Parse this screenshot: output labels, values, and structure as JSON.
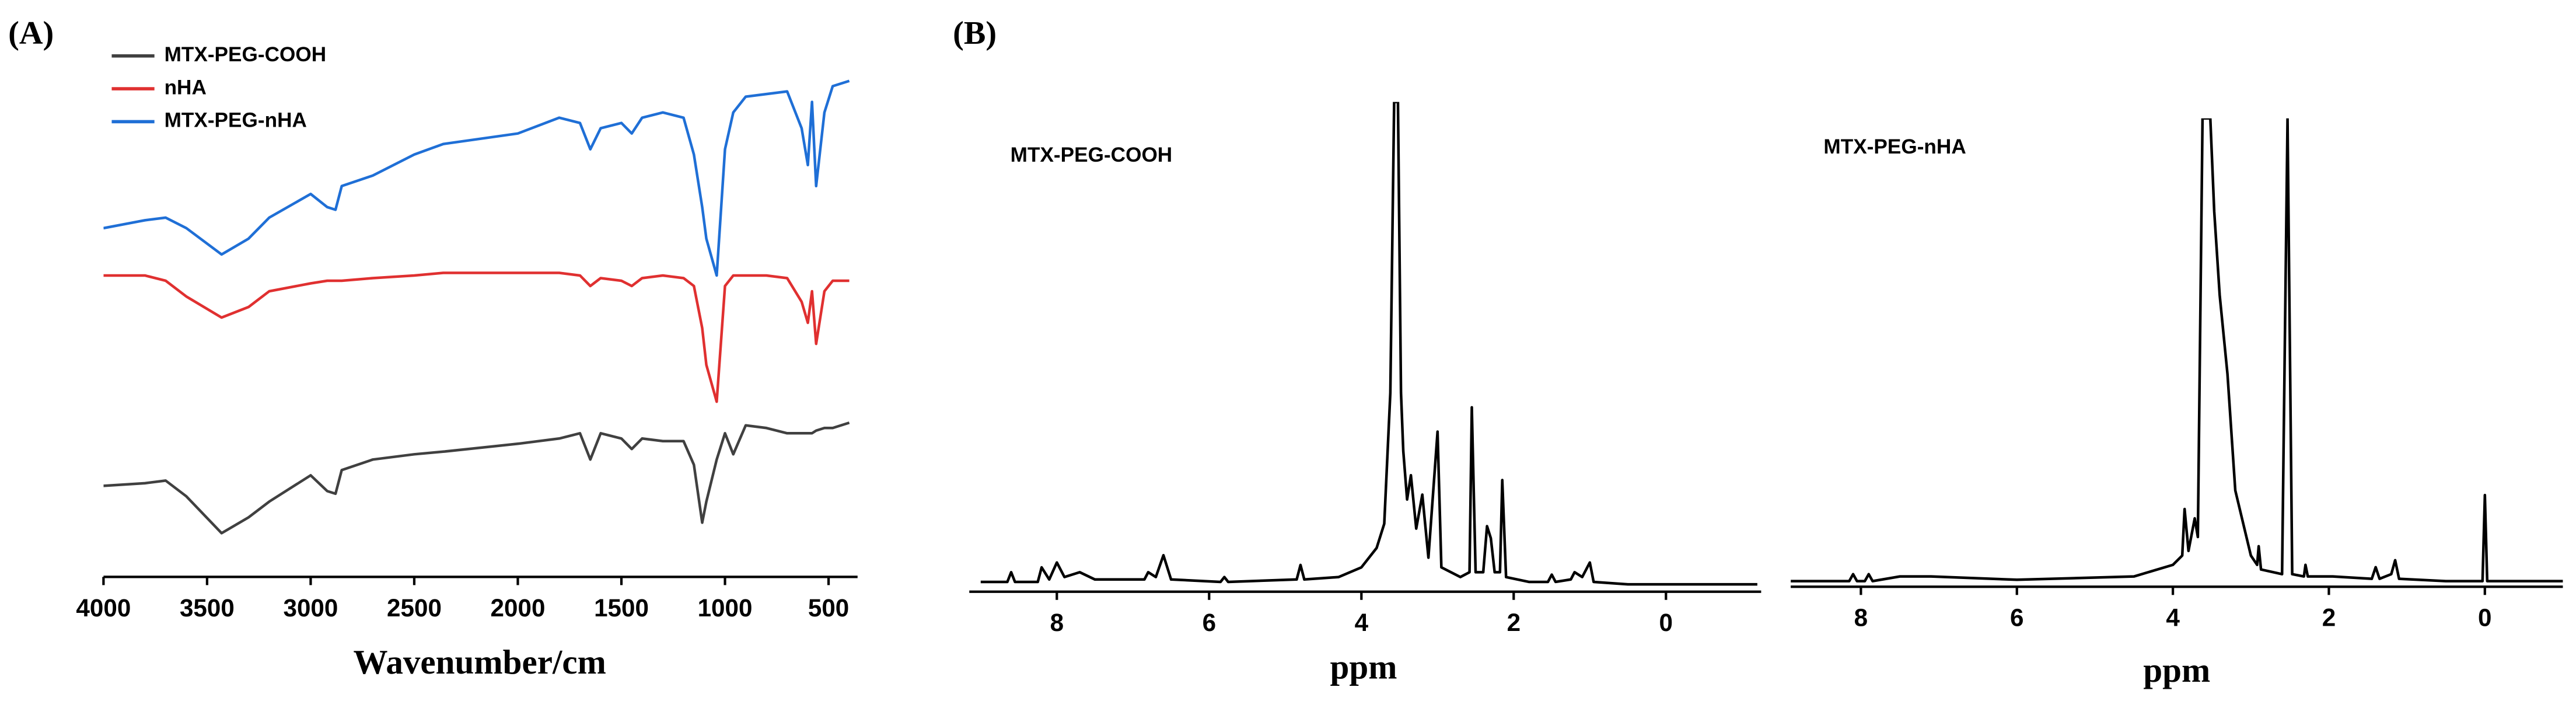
{
  "chart_data": [
    {
      "type": "line",
      "panel": "(A)",
      "x_label": "Wavenumber/cm",
      "x": [
        4000,
        3800,
        3700,
        3600,
        3430,
        3300,
        3200,
        3000,
        2920,
        2880,
        2850,
        2700,
        2500,
        2360,
        2000,
        1800,
        1700,
        1650,
        1600,
        1500,
        1450,
        1400,
        1300,
        1200,
        1150,
        1110,
        1090,
        1040,
        1000,
        960,
        900,
        800,
        700,
        630,
        600,
        580,
        560,
        520,
        480,
        400
      ],
      "xlim": [
        4000,
        360
      ],
      "xticks": [
        4000,
        3500,
        3000,
        2500,
        2000,
        1500,
        1000,
        500
      ],
      "ylim": [
        0,
        100
      ],
      "series": [
        {
          "name": "MTX-PEG-COOH",
          "color": "#404040",
          "values": [
            17,
            17.5,
            18,
            15,
            8,
            11,
            14,
            19,
            16,
            15.5,
            20,
            22,
            23,
            23.5,
            25,
            26,
            27,
            22,
            27,
            26,
            24,
            26,
            25.5,
            25.5,
            21,
            10,
            14,
            22,
            27,
            23,
            28.5,
            28,
            27,
            27,
            27,
            27,
            27.5,
            28,
            28,
            29
          ]
        },
        {
          "name": "nHA",
          "color": "#e03030",
          "values": [
            57,
            57,
            56,
            53,
            49,
            51,
            54,
            55.5,
            56,
            56,
            56,
            56.5,
            57,
            57.5,
            57.5,
            57.5,
            57,
            55,
            56.5,
            56,
            55,
            56.5,
            57,
            56.5,
            55,
            47,
            40,
            33,
            55,
            57,
            57,
            57,
            56.5,
            52,
            48,
            54,
            44,
            54,
            56,
            56
          ]
        },
        {
          "name": "MTX-PEG-nHA",
          "color": "#1f6fd6",
          "values": [
            66,
            67.5,
            68,
            66,
            61,
            64,
            68,
            72.5,
            70,
            69.5,
            74,
            76,
            80,
            82,
            84,
            87,
            86,
            81,
            85,
            86,
            84,
            87,
            88,
            87,
            80,
            70,
            64,
            57,
            81,
            88,
            91,
            91.5,
            92,
            85,
            78,
            90,
            74,
            88,
            93,
            94
          ]
        }
      ]
    },
    {
      "type": "line",
      "panel": "(B)",
      "annotation": "MTX-PEG-COOH",
      "x_label": "ppm",
      "color": "#000000",
      "x": [
        9.0,
        8.65,
        8.6,
        8.55,
        8.25,
        8.2,
        8.1,
        8.0,
        7.9,
        7.7,
        7.5,
        6.85,
        6.8,
        6.7,
        6.6,
        6.5,
        5.85,
        5.8,
        5.75,
        4.85,
        4.8,
        4.75,
        4.3,
        4.0,
        3.8,
        3.7,
        3.62,
        3.57,
        3.52,
        3.48,
        3.45,
        3.4,
        3.35,
        3.28,
        3.2,
        3.12,
        3.0,
        2.95,
        2.7,
        2.58,
        2.55,
        2.5,
        2.4,
        2.35,
        2.3,
        2.25,
        2.18,
        2.15,
        2.1,
        1.8,
        1.55,
        1.5,
        1.45,
        1.25,
        1.2,
        1.1,
        1.0,
        0.95,
        0.5,
        -1.2
      ],
      "values": [
        1,
        1,
        3,
        1,
        1,
        4,
        1.5,
        5,
        2,
        3,
        1.5,
        1.5,
        3,
        2,
        6.5,
        1.5,
        1,
        2,
        1,
        1.5,
        4.5,
        1.5,
        2,
        4,
        8,
        13,
        40,
        100,
        100,
        40,
        28,
        18,
        23,
        12,
        19,
        6,
        32,
        4,
        2,
        3,
        37,
        3,
        3,
        12.5,
        10,
        3,
        3,
        22,
        2,
        1,
        1,
        2.5,
        1,
        1.5,
        3,
        2,
        5,
        1,
        0.5,
        0.5
      ],
      "xlim": [
        9.15,
        -1.25
      ],
      "xticks": [
        8,
        6,
        4,
        2,
        0
      ],
      "ylim": [
        0,
        100
      ]
    },
    {
      "type": "line",
      "annotation": "MTX-PEG-nHA",
      "x_label": "ppm",
      "color": "#000000",
      "x": [
        8.9,
        8.15,
        8.1,
        8.05,
        7.95,
        7.9,
        7.85,
        7.5,
        7.1,
        6,
        4.5,
        4.0,
        3.88,
        3.85,
        3.8,
        3.72,
        3.68,
        3.62,
        3.56,
        3.52,
        3.47,
        3.4,
        3.3,
        3.2,
        3.0,
        2.92,
        2.9,
        2.87,
        2.6,
        2.53,
        2.47,
        2.32,
        2.3,
        2.27,
        1.95,
        1.45,
        1.4,
        1.35,
        1.2,
        1.15,
        1.1,
        0.5,
        0.03,
        0,
        -0.03,
        -1.0
      ],
      "values": [
        0.5,
        0.5,
        2,
        0.5,
        0.5,
        2,
        0.5,
        1.5,
        1.5,
        0.8,
        1.5,
        4,
        6,
        16,
        7,
        14,
        10,
        100,
        100,
        100,
        80,
        62,
        45,
        20,
        6,
        4,
        8,
        3,
        2,
        100,
        2,
        1.5,
        4,
        1.5,
        1.5,
        1,
        3.5,
        1,
        2,
        5,
        1,
        0.5,
        0.5,
        19,
        0.5,
        0.5
      ],
      "xlim": [
        8.9,
        -1.0
      ],
      "xticks": [
        8,
        6,
        4,
        2,
        0
      ],
      "ylim": [
        0,
        100
      ]
    }
  ]
}
